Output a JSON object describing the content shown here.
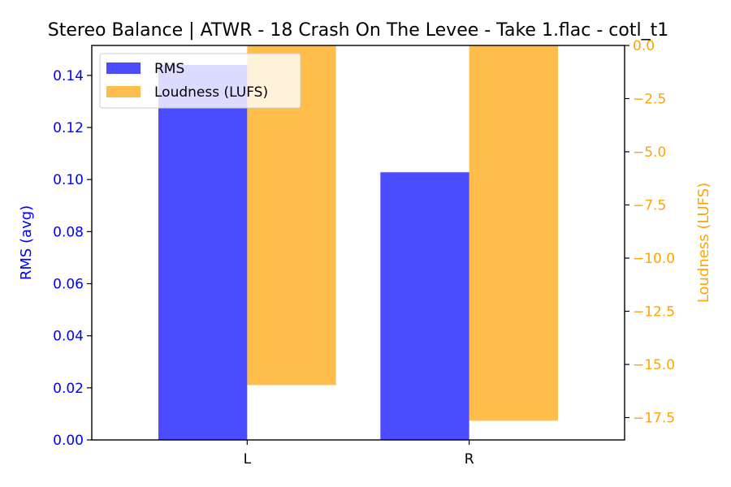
{
  "chart_data": {
    "type": "bar",
    "title": "Stereo Balance | ATWR - 18 Crash On The Levee - Take 1.flac - cotl_t1",
    "categories": [
      "L",
      "R"
    ],
    "series": [
      {
        "name": "RMS",
        "axis": "left",
        "color": "#4b4bff",
        "values": [
          0.144,
          0.1028
        ]
      },
      {
        "name": "Loudness (LUFS)",
        "axis": "right",
        "color": "#ffbe4c",
        "values": [
          -15.97,
          -17.65
        ]
      }
    ],
    "y_left": {
      "label": "RMS (avg)",
      "color": "#0000ff",
      "range": [
        0,
        0.1515
      ],
      "ticks": [
        0.0,
        0.02,
        0.04,
        0.06,
        0.08,
        0.1,
        0.12,
        0.14
      ],
      "tick_labels": [
        "0.00",
        "0.02",
        "0.04",
        "0.06",
        "0.08",
        "0.10",
        "0.12",
        "0.14"
      ]
    },
    "y_right": {
      "label": "Loudness (LUFS)",
      "color": "#ffa500",
      "range": [
        -18.55,
        0
      ],
      "ticks": [
        0.0,
        -2.5,
        -5.0,
        -7.5,
        -10.0,
        -12.5,
        -15.0,
        -17.5
      ],
      "tick_labels": [
        "0.0",
        "−2.5",
        "−5.0",
        "−7.5",
        "−10.0",
        "−12.5",
        "−15.0",
        "−17.5"
      ]
    },
    "grid": false,
    "legend_position": "top-left"
  }
}
